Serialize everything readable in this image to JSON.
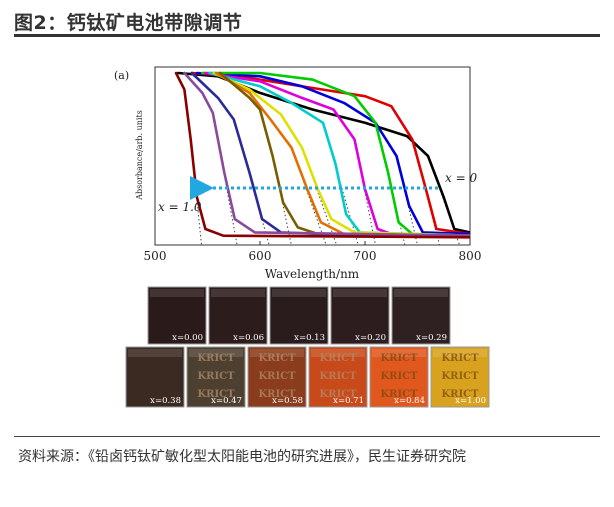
{
  "header": {
    "title": "图2：钙钛矿电池带隙调节"
  },
  "chart_data": {
    "type": "line",
    "panel_label": "(a)",
    "xlabel": "Wavelength/nm",
    "ylabel": "Absorbance/arb. units",
    "xlim": [
      500,
      800
    ],
    "x_ticks": [
      "500",
      "600",
      "700",
      "800"
    ],
    "annotations": {
      "x0": "x = 0",
      "x1": "x = 1.0"
    },
    "series": [
      {
        "color": "#000000",
        "points": [
          [
            522,
            1.0
          ],
          [
            560,
            0.98
          ],
          [
            600,
            0.88
          ],
          [
            650,
            0.78
          ],
          [
            700,
            0.7
          ],
          [
            740,
            0.62
          ],
          [
            760,
            0.5
          ],
          [
            775,
            0.25
          ],
          [
            785,
            0.06
          ],
          [
            800,
            0.04
          ]
        ]
      },
      {
        "color": "#e00000",
        "points": [
          [
            535,
            1.0
          ],
          [
            580,
            0.98
          ],
          [
            620,
            0.94
          ],
          [
            660,
            0.9
          ],
          [
            700,
            0.86
          ],
          [
            725,
            0.8
          ],
          [
            745,
            0.6
          ],
          [
            758,
            0.3
          ],
          [
            768,
            0.06
          ],
          [
            800,
            0.03
          ]
        ]
      },
      {
        "color": "#0000dd",
        "points": [
          [
            540,
            1.0
          ],
          [
            600,
            0.98
          ],
          [
            640,
            0.92
          ],
          [
            680,
            0.82
          ],
          [
            710,
            0.7
          ],
          [
            730,
            0.5
          ],
          [
            742,
            0.2
          ],
          [
            755,
            0.04
          ],
          [
            800,
            0.03
          ]
        ]
      },
      {
        "color": "#00cc00",
        "points": [
          [
            545,
            1.0
          ],
          [
            600,
            1.0
          ],
          [
            650,
            0.96
          ],
          [
            690,
            0.86
          ],
          [
            710,
            0.7
          ],
          [
            722,
            0.4
          ],
          [
            732,
            0.1
          ],
          [
            745,
            0.03
          ],
          [
            800,
            0.02
          ]
        ]
      },
      {
        "color": "#dd00dd",
        "points": [
          [
            548,
            1.0
          ],
          [
            600,
            0.95
          ],
          [
            640,
            0.85
          ],
          [
            670,
            0.78
          ],
          [
            690,
            0.6
          ],
          [
            700,
            0.3
          ],
          [
            712,
            0.06
          ],
          [
            730,
            0.02
          ],
          [
            800,
            0.02
          ]
        ]
      },
      {
        "color": "#00cccc",
        "points": [
          [
            552,
            1.0
          ],
          [
            600,
            0.92
          ],
          [
            630,
            0.82
          ],
          [
            660,
            0.7
          ],
          [
            672,
            0.45
          ],
          [
            682,
            0.15
          ],
          [
            695,
            0.04
          ],
          [
            800,
            0.02
          ]
        ]
      },
      {
        "color": "#e0e000",
        "points": [
          [
            556,
            1.0
          ],
          [
            590,
            0.9
          ],
          [
            620,
            0.75
          ],
          [
            640,
            0.55
          ],
          [
            655,
            0.3
          ],
          [
            668,
            0.12
          ],
          [
            690,
            0.04
          ],
          [
            800,
            0.02
          ]
        ]
      },
      {
        "color": "#e07000",
        "points": [
          [
            558,
            1.0
          ],
          [
            590,
            0.88
          ],
          [
            610,
            0.72
          ],
          [
            630,
            0.55
          ],
          [
            645,
            0.3
          ],
          [
            658,
            0.1
          ],
          [
            680,
            0.03
          ],
          [
            800,
            0.02
          ]
        ]
      },
      {
        "color": "#7a5c00",
        "points": [
          [
            562,
            1.0
          ],
          [
            590,
            0.85
          ],
          [
            600,
            0.78
          ],
          [
            612,
            0.5
          ],
          [
            622,
            0.22
          ],
          [
            636,
            0.07
          ],
          [
            660,
            0.02
          ],
          [
            800,
            0.02
          ]
        ]
      },
      {
        "color": "#2a2a9a",
        "points": [
          [
            535,
            1.0
          ],
          [
            560,
            0.85
          ],
          [
            575,
            0.72
          ],
          [
            590,
            0.4
          ],
          [
            602,
            0.12
          ],
          [
            620,
            0.04
          ],
          [
            700,
            0.02
          ],
          [
            800,
            0.02
          ]
        ]
      },
      {
        "color": "#8a4a9a",
        "points": [
          [
            528,
            1.0
          ],
          [
            545,
            0.88
          ],
          [
            555,
            0.76
          ],
          [
            566,
            0.4
          ],
          [
            576,
            0.12
          ],
          [
            595,
            0.04
          ],
          [
            800,
            0.02
          ]
        ]
      },
      {
        "color": "#880000",
        "points": [
          [
            520,
            1.0
          ],
          [
            528,
            0.9
          ],
          [
            534,
            0.6
          ],
          [
            540,
            0.25
          ],
          [
            548,
            0.06
          ],
          [
            565,
            0.02
          ],
          [
            800,
            0.01
          ]
        ]
      }
    ],
    "photo_labels": {
      "row1": [
        "x=0.00",
        "x=0.06",
        "x=0.13",
        "x=0.20",
        "x=0.29"
      ],
      "row2": [
        "x=0.38",
        "x=0.47",
        "x=0.58",
        "x=0.71",
        "x=0.84",
        "x=1.00"
      ]
    },
    "photo_colors": {
      "row1": [
        "#2a1a1a",
        "#2c1c1c",
        "#2a1c1d",
        "#2d1d1f",
        "#2f2122"
      ],
      "row2": [
        "#3a2a22",
        "#4e4030",
        "#8a3c1c",
        "#c84a1a",
        "#e0581e",
        "#d8a21e"
      ]
    },
    "krict": "KRICT"
  },
  "footer": {
    "source": "资料来源：《铅卤钙钛矿敏化型太阳能电池的研究进展》，民生证券研究院"
  }
}
